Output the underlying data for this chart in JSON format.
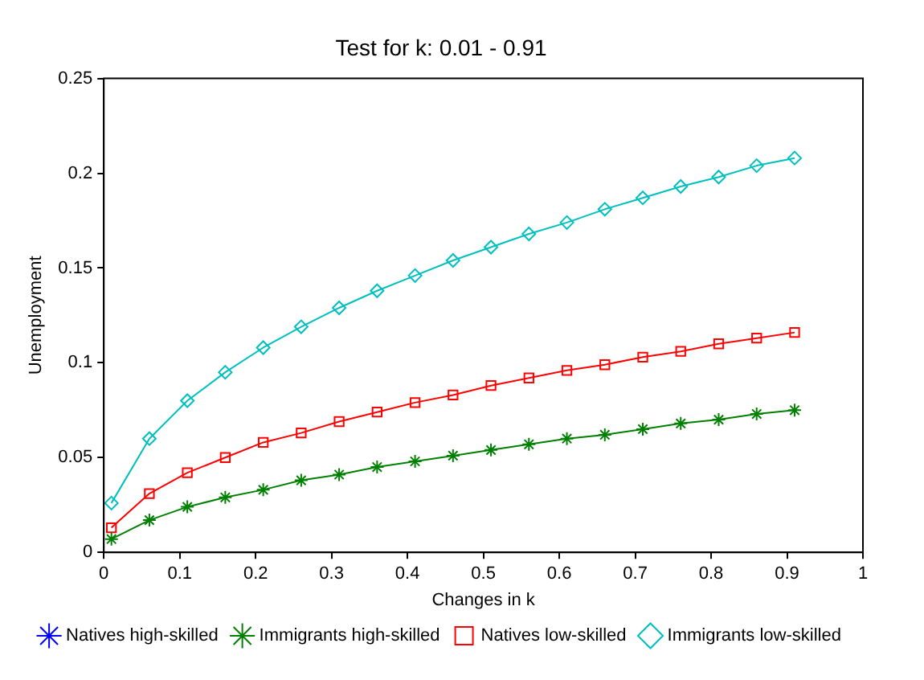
{
  "chart_data": {
    "type": "line",
    "title": "Test for k: 0.01 - 0.91",
    "xlabel": "Changes in k",
    "ylabel": "Unemployment",
    "x": [
      0.01,
      0.06,
      0.11,
      0.16,
      0.21,
      0.26,
      0.31,
      0.36,
      0.41,
      0.46,
      0.51,
      0.56,
      0.61,
      0.66,
      0.71,
      0.76,
      0.81,
      0.86,
      0.91
    ],
    "series": [
      {
        "name": "Natives high-skilled",
        "color": "#0000ff",
        "marker": "cross",
        "values": [
          null,
          null,
          null,
          null,
          null,
          null,
          null,
          null,
          null,
          null,
          null,
          null,
          null,
          null,
          null,
          null,
          null,
          null,
          null
        ]
      },
      {
        "name": "Immigrants high-skilled",
        "color": "#008000",
        "marker": "cross",
        "values": [
          0.007,
          0.017,
          0.024,
          0.029,
          0.033,
          0.038,
          0.041,
          0.045,
          0.048,
          0.051,
          0.054,
          0.057,
          0.06,
          0.062,
          0.065,
          0.068,
          0.07,
          0.073,
          0.075
        ]
      },
      {
        "name": "Natives low-skilled",
        "color": "#ff0000",
        "marker": "square",
        "values": [
          0.013,
          0.031,
          0.042,
          0.05,
          0.058,
          0.063,
          0.069,
          0.074,
          0.079,
          0.083,
          0.088,
          0.092,
          0.096,
          0.099,
          0.103,
          0.106,
          0.11,
          0.113,
          0.116
        ]
      },
      {
        "name": "Immigrants low-skilled",
        "color": "#00bfbf",
        "marker": "diamond",
        "values": [
          0.026,
          0.06,
          0.08,
          0.095,
          0.108,
          0.119,
          0.129,
          0.138,
          0.146,
          0.154,
          0.161,
          0.168,
          0.174,
          0.181,
          0.187,
          0.193,
          0.198,
          0.204,
          0.208
        ]
      }
    ],
    "xlim": [
      0,
      1
    ],
    "xticks": [
      0,
      0.1,
      0.2,
      0.3,
      0.4,
      0.5,
      0.6,
      0.7,
      0.8,
      0.9,
      1
    ],
    "ylim": [
      0,
      0.25
    ],
    "yticks": [
      0,
      0.05,
      0.1,
      0.15,
      0.2,
      0.25
    ],
    "grid": false,
    "legend": "bottom",
    "line_style": "solid"
  }
}
